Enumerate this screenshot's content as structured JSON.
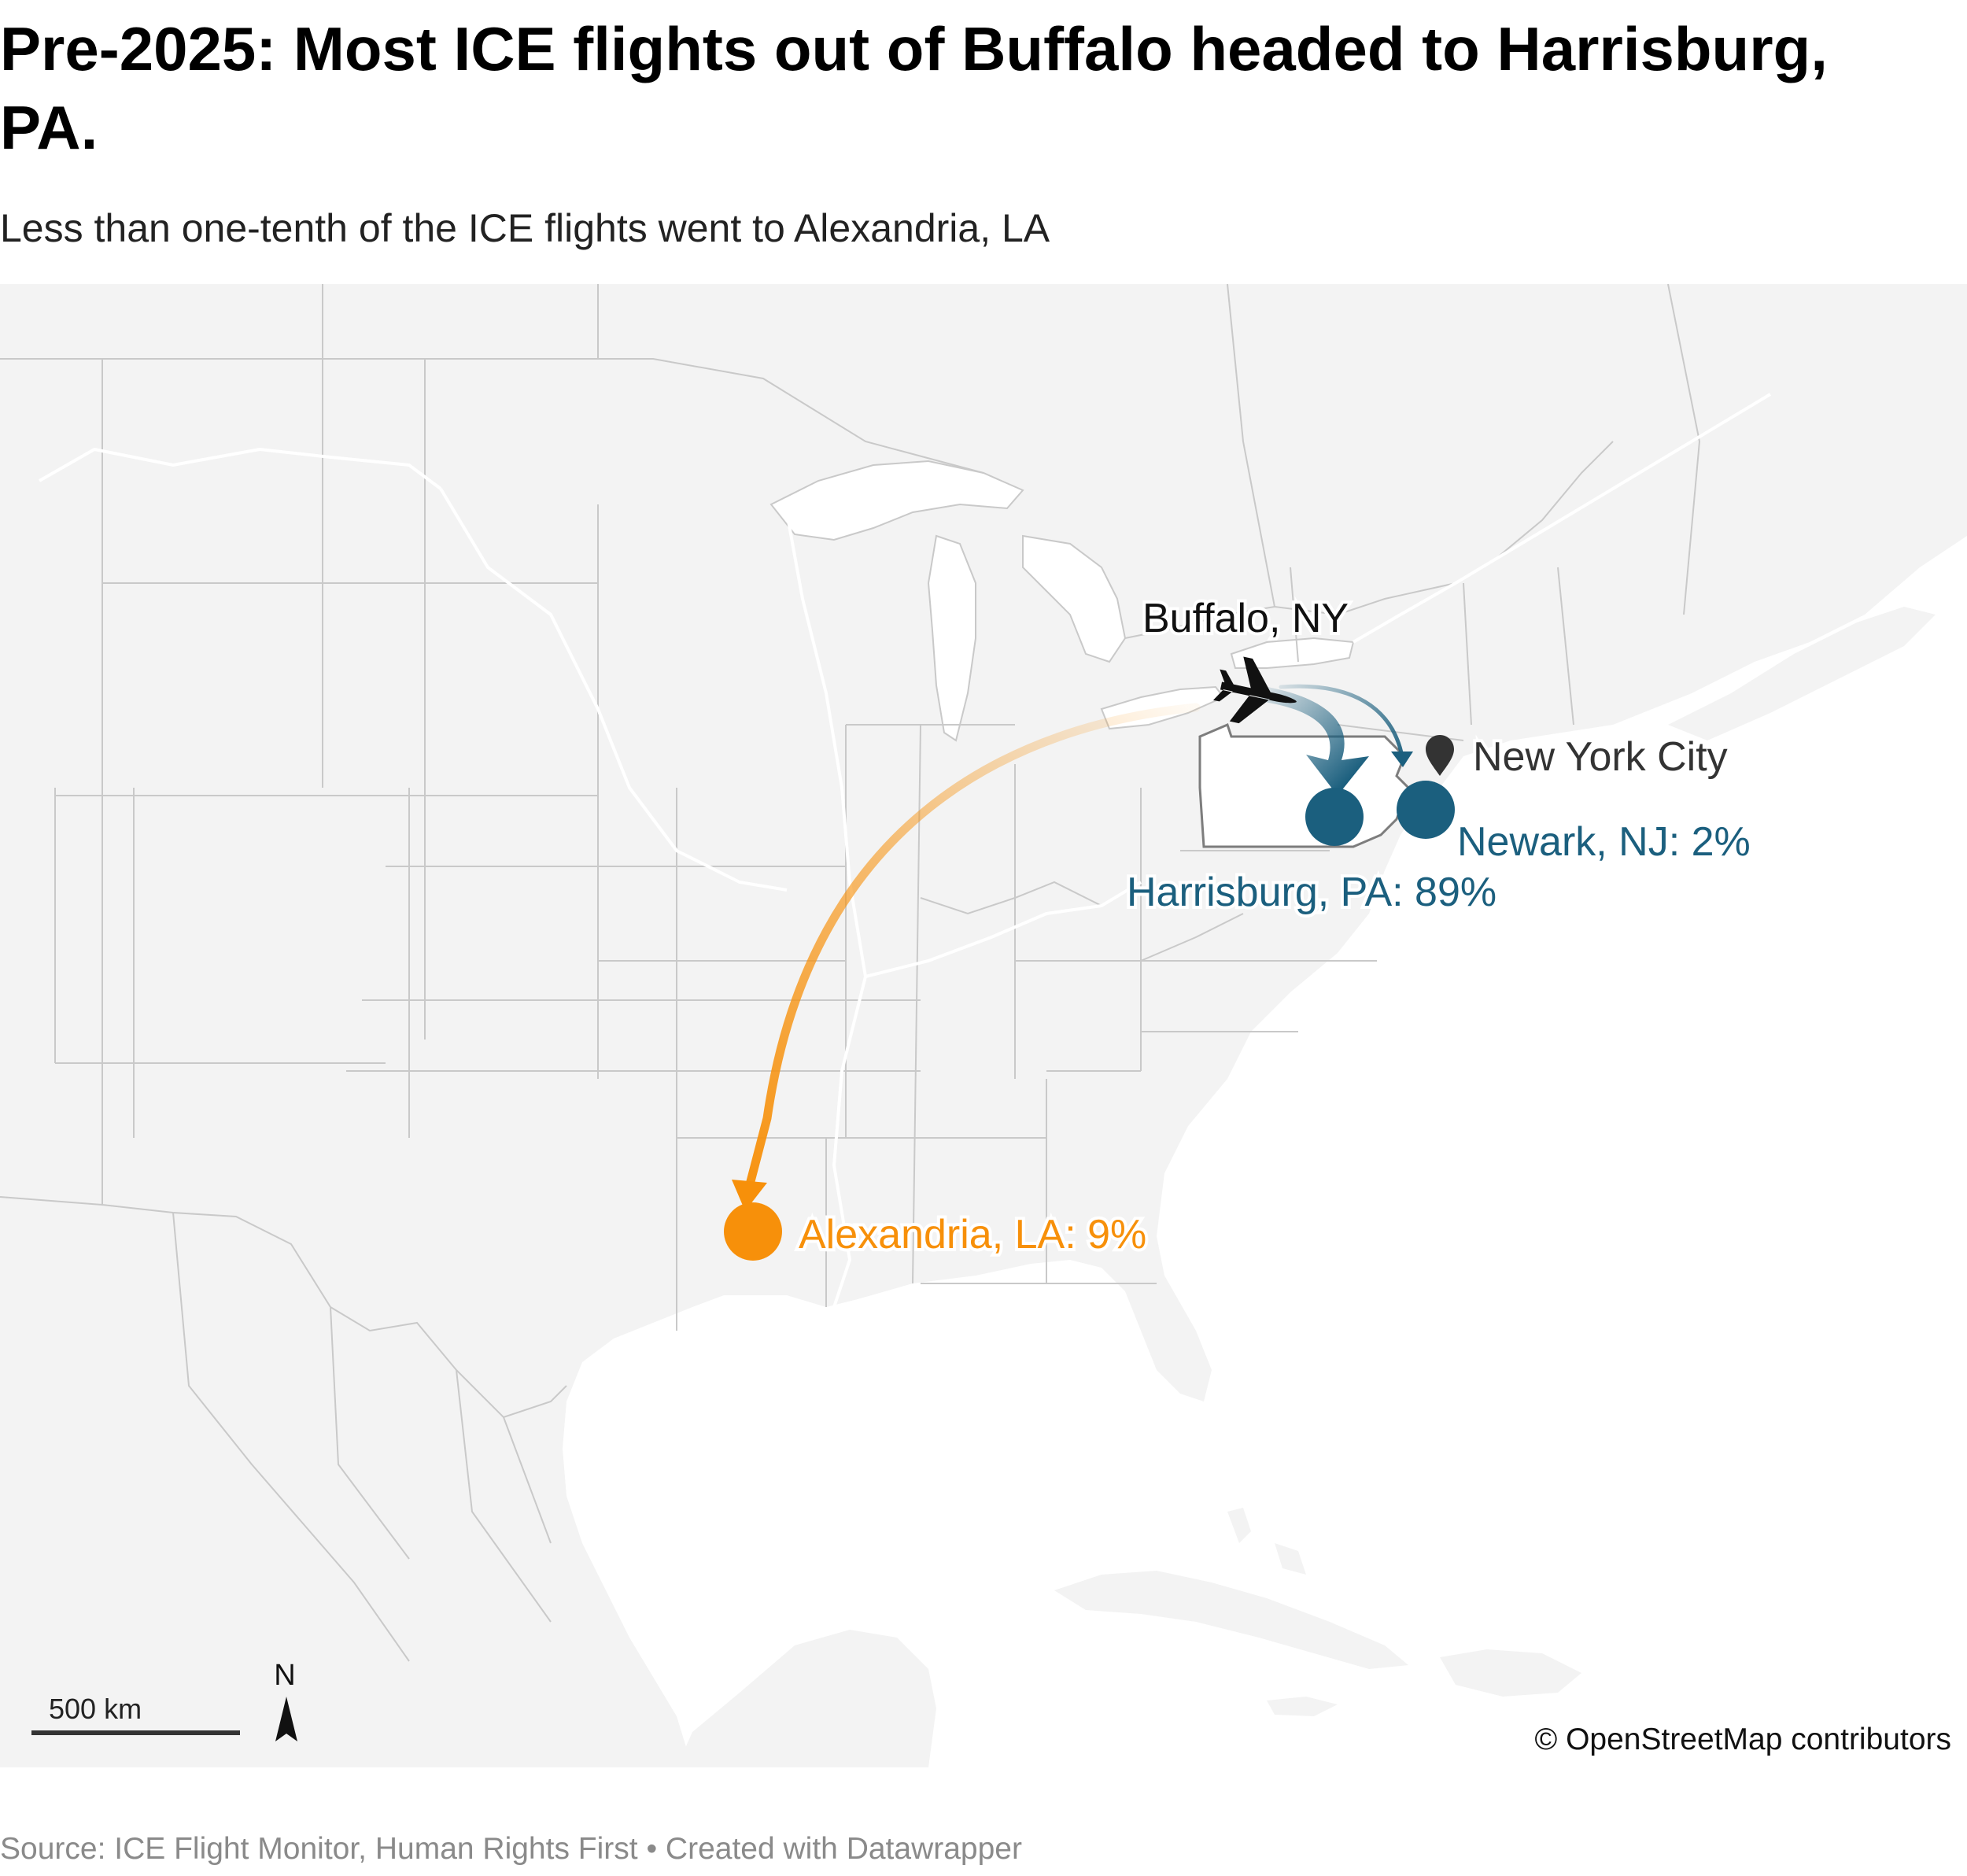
{
  "title": "Pre-2025: Most ICE flights out of Buffalo headed to Harrisburg, PA.",
  "subtitle": "Less than one-tenth of the ICE flights went to Alexandria, LA",
  "map": {
    "origin": {
      "label": "Buffalo, NY",
      "icon": "airplane-icon"
    },
    "reference_marker": {
      "label": "New York City",
      "icon": "map-pin-icon"
    },
    "destinations": [
      {
        "label": "Harrisburg, PA: 89%",
        "share_percent": 89,
        "color": "#1b5f7e"
      },
      {
        "label": "Newark, NJ: 2%",
        "share_percent": 2,
        "color": "#1b5f7e"
      },
      {
        "label": "Alexandria, LA: 9%",
        "share_percent": 9,
        "color": "#f7900a"
      }
    ],
    "scale_bar": {
      "label": "500 km"
    },
    "north_arrow": {
      "label": "N"
    },
    "attribution": "© OpenStreetMap contributors",
    "colors": {
      "land": "#f3f3f3",
      "water": "#ffffff",
      "borders": "#c9c9c9",
      "highlight_state": "#ffffff"
    }
  },
  "footer": "Source: ICE Flight Monitor, Human Rights First • Created with Datawrapper"
}
